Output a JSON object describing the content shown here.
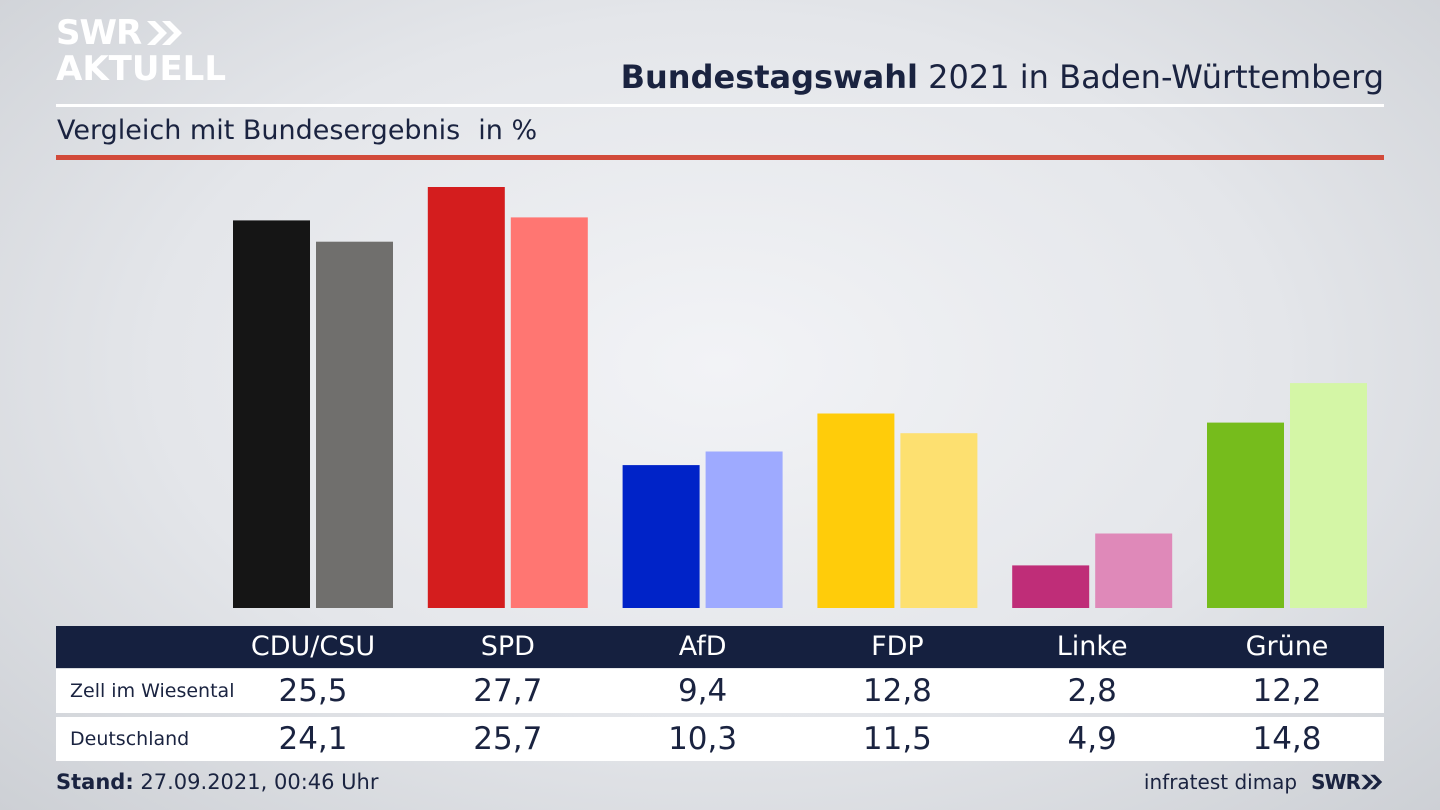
{
  "branding": {
    "logo_line1": "SWR",
    "logo_line2": "AKTUELL",
    "footer_logo": "SWR"
  },
  "header": {
    "title_bold": "Bundestagswahl",
    "title_rest": " 2021 in Baden-Württemberg",
    "subtitle": "Vergleich mit Bundesergebnis",
    "unit": "in %"
  },
  "chart_data": {
    "type": "bar",
    "categories": [
      "CDU/CSU",
      "SPD",
      "AfD",
      "FDP",
      "Linke",
      "Grüne"
    ],
    "series": [
      {
        "name": "Zell im Wiesental",
        "values": [
          25.5,
          27.7,
          9.4,
          12.8,
          2.8,
          12.2
        ],
        "display": [
          "25,5",
          "27,7",
          "9,4",
          "12,8",
          "2,8",
          "12,2"
        ],
        "colors": [
          "#151515",
          "#d41d1e",
          "#0023c8",
          "#ffcc0a",
          "#bf2d78",
          "#76bc1c"
        ]
      },
      {
        "name": "Deutschland",
        "values": [
          24.1,
          25.7,
          10.3,
          11.5,
          4.9,
          14.8
        ],
        "display": [
          "24,1",
          "25,7",
          "10,3",
          "11,5",
          "4,9",
          "14,8"
        ],
        "colors": [
          "#706f6d",
          "#ff7672",
          "#9eaaff",
          "#fde070",
          "#df89b9",
          "#d4f6a6"
        ]
      }
    ],
    "ylim": [
      0,
      27.7
    ],
    "grid": false,
    "legend": "none"
  },
  "footer": {
    "stand_label": "Stand:",
    "stand_value": " 27.09.2021, 00:46 Uhr",
    "source": "infratest dimap"
  }
}
